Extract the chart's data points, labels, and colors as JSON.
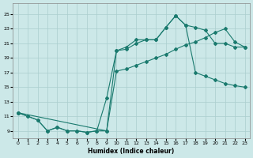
{
  "xlabel": "Humidex (Indice chaleur)",
  "xlim": [
    -0.5,
    23.5
  ],
  "ylim": [
    8.0,
    26.5
  ],
  "yticks": [
    9,
    11,
    13,
    15,
    17,
    19,
    21,
    23,
    25
  ],
  "xticks": [
    0,
    1,
    2,
    3,
    4,
    5,
    6,
    7,
    8,
    9,
    10,
    11,
    12,
    13,
    14,
    15,
    16,
    17,
    18,
    19,
    20,
    21,
    22,
    23
  ],
  "line_color": "#1a7a6e",
  "bg_color": "#cce8e8",
  "grid_color": "#aacece",
  "line1_x": [
    0,
    1,
    2,
    3,
    4,
    5,
    6,
    7,
    8,
    9,
    10,
    11,
    12,
    13,
    14,
    15,
    16,
    17,
    18,
    19,
    20,
    21,
    22,
    23
  ],
  "line1_y": [
    11.5,
    11.0,
    10.5,
    9.0,
    9.5,
    9.0,
    9.0,
    8.8,
    9.0,
    9.0,
    20.0,
    20.5,
    21.5,
    21.5,
    21.5,
    23.2,
    24.8,
    23.5,
    23.2,
    22.8,
    21.0,
    21.0,
    20.5,
    20.5
  ],
  "line2_x": [
    0,
    1,
    2,
    3,
    4,
    5,
    6,
    7,
    8,
    9,
    10,
    11,
    12,
    13,
    14,
    15,
    16,
    17,
    18,
    19,
    20,
    21,
    22,
    23
  ],
  "line2_y": [
    11.5,
    11.0,
    10.5,
    9.0,
    9.5,
    9.0,
    9.0,
    8.8,
    9.0,
    13.5,
    20.0,
    20.2,
    21.0,
    21.5,
    21.5,
    23.2,
    24.8,
    23.5,
    17.0,
    16.5,
    16.0,
    15.5,
    15.2,
    15.0
  ],
  "line3_x": [
    0,
    9,
    10,
    11,
    12,
    13,
    14,
    15,
    16,
    17,
    18,
    19,
    20,
    21,
    22,
    23
  ],
  "line3_y": [
    11.5,
    9.0,
    17.2,
    17.5,
    18.0,
    18.5,
    19.0,
    19.5,
    20.2,
    20.8,
    21.2,
    21.8,
    22.5,
    23.0,
    21.2,
    20.5
  ]
}
